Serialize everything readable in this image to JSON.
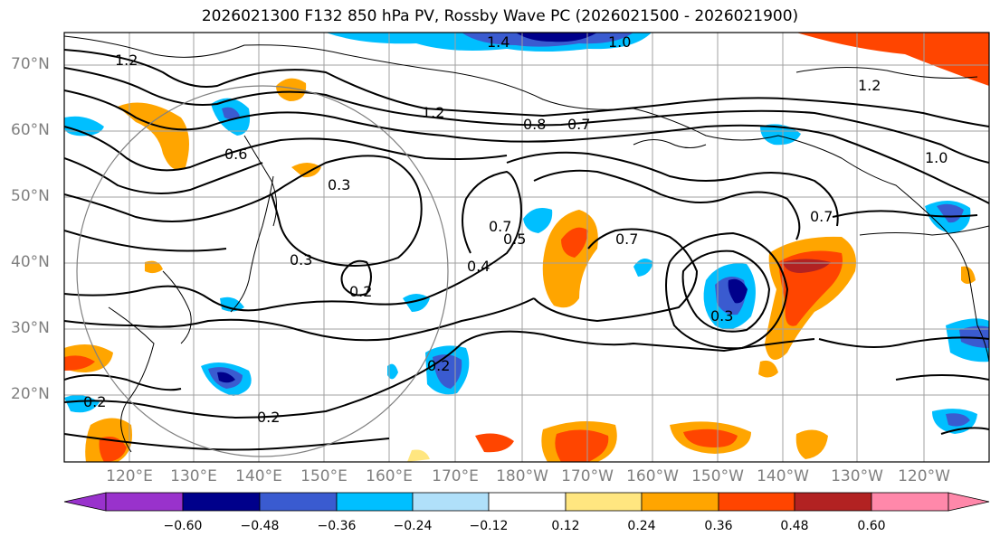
{
  "title": "2026021300 F132 850 hPa PV, Rossby Wave PC (2026021500 - 2026021900)",
  "lat_labels": [
    "70°N",
    "60°N",
    "50°N",
    "40°N",
    "30°N",
    "20°N"
  ],
  "lon_labels": [
    "120°E",
    "130°E",
    "140°E",
    "150°E",
    "160°E",
    "170°E",
    "180°W",
    "170°W",
    "160°W",
    "150°W",
    "140°W",
    "130°W",
    "120°W"
  ],
  "contour_labels": [
    "1.4",
    "1.0",
    "1.2",
    "1.2",
    "0.8",
    "0.7",
    "1.2",
    "1.0",
    "0.6",
    "0.3",
    "0.7",
    "0.5",
    "0.7",
    "0.4",
    "0.3",
    "0.2",
    "0.7",
    "0.3",
    "0.2",
    "0.2",
    "0.2"
  ],
  "colorbar": {
    "ticks": [
      "−0.60",
      "−0.48",
      "−0.36",
      "−0.24",
      "−0.12",
      "0.12",
      "0.24",
      "0.36",
      "0.48",
      "0.60"
    ],
    "colors": [
      "#9932CC",
      "#00008B",
      "#3A5BD0",
      "#00BFFF",
      "#B0E0FA",
      "#FFFFFF",
      "#FFE680",
      "#FFA500",
      "#FF4500",
      "#B22222",
      "#FF88AA"
    ]
  }
}
